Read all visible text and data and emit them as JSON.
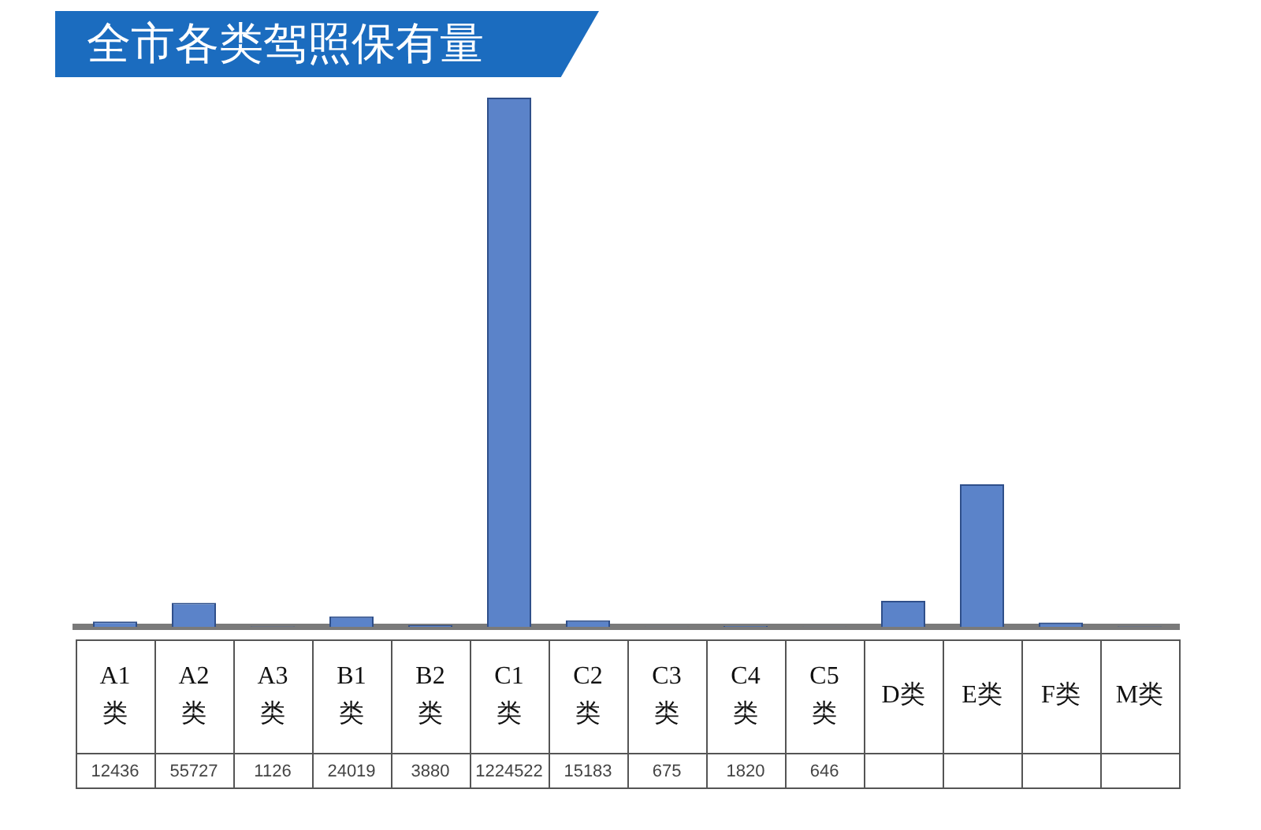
{
  "chart_data": {
    "type": "bar",
    "title": "全市各类驾照保有量",
    "categories": [
      "A1类",
      "A2类",
      "A3类",
      "B1类",
      "B2类",
      "C1类",
      "C2类",
      "C3类",
      "C4类",
      "C5类",
      "D类",
      "E类",
      "F类",
      "M类"
    ],
    "values": [
      12436,
      55727,
      1126,
      24019,
      3880,
      1224522,
      15183,
      675,
      1820,
      646,
      60000,
      330000,
      10000,
      1000
    ],
    "value_labels": [
      "12436",
      "55727",
      "1126",
      "24019",
      "3880",
      "1224522",
      "15183",
      "675",
      "1820",
      "646",
      null,
      null,
      null,
      null
    ],
    "color": "#5b83c9"
  }
}
